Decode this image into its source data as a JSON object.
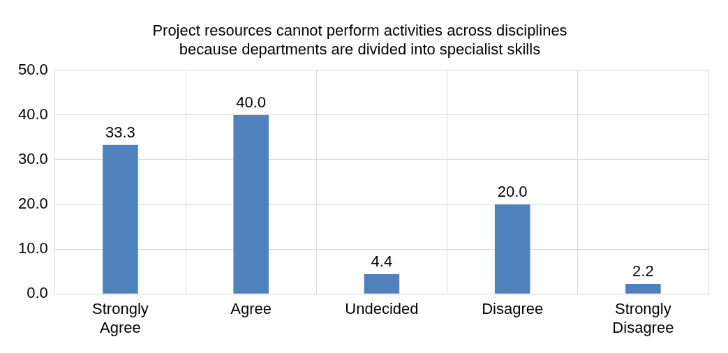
{
  "chart_data": {
    "type": "bar",
    "title": "Project resources cannot perform activities across disciplines because departments are divided into specialist skills",
    "categories": [
      "Strongly Agree",
      "Agree",
      "Undecided",
      "Disagree",
      "Strongly Disagree"
    ],
    "values": [
      33.3,
      40.0,
      4.4,
      20.0,
      2.2
    ],
    "value_labels": [
      "33.3",
      "40.0",
      "4.4",
      "20.0",
      "2.2"
    ],
    "color": "#4f81bd",
    "ylim": [
      0,
      50
    ],
    "yticks": [
      {
        "value": 0,
        "label": "0.0"
      },
      {
        "value": 10,
        "label": "10.0"
      },
      {
        "value": 20,
        "label": "20.0"
      },
      {
        "value": 30,
        "label": "30.0"
      },
      {
        "value": 40,
        "label": "40.0"
      },
      {
        "value": 50,
        "label": "50.0"
      }
    ],
    "grid": true,
    "legend": false
  }
}
